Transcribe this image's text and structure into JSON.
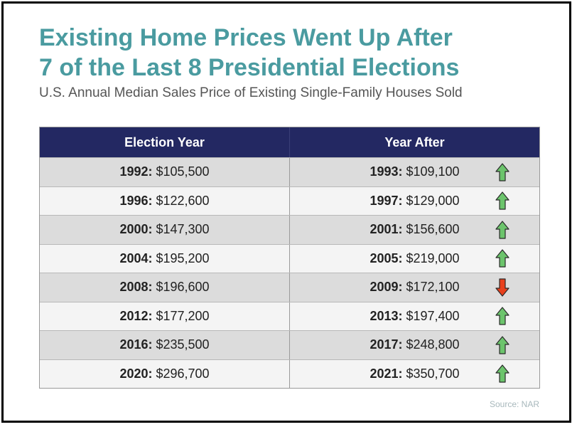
{
  "title": {
    "line1": "Existing Home Prices Went Up After",
    "line2": "7 of the Last 8 Presidential Elections"
  },
  "subtitle": "U.S. Annual Median Sales Price of Existing Single-Family Houses Sold",
  "source": "Source: NAR",
  "colors": {
    "title": "#4a9ba0",
    "header_bg": "#232862",
    "up_arrow": "#6cc46c",
    "down_arrow": "#e8401c"
  },
  "chart_data": {
    "type": "table",
    "title": "Existing Home Prices Went Up After 7 of the Last 8 Presidential Elections",
    "subtitle": "U.S. Annual Median Sales Price of Existing Single-Family Houses Sold",
    "columns": [
      "Election Year",
      "Year After"
    ],
    "rows": [
      {
        "election_year": "1992:",
        "election_price": "$105,500",
        "after_year": "1993:",
        "after_price": "$109,100",
        "direction": "up"
      },
      {
        "election_year": "1996:",
        "election_price": "$122,600",
        "after_year": "1997:",
        "after_price": "$129,000",
        "direction": "up"
      },
      {
        "election_year": "2000:",
        "election_price": "$147,300",
        "after_year": "2001:",
        "after_price": "$156,600",
        "direction": "up"
      },
      {
        "election_year": "2004:",
        "election_price": "$195,200",
        "after_year": "2005:",
        "after_price": "$219,000",
        "direction": "up"
      },
      {
        "election_year": "2008:",
        "election_price": "$196,600",
        "after_year": "2009:",
        "after_price": "$172,100",
        "direction": "down"
      },
      {
        "election_year": "2012:",
        "election_price": "$177,200",
        "after_year": "2013:",
        "after_price": "$197,400",
        "direction": "up"
      },
      {
        "election_year": "2016:",
        "election_price": "$235,500",
        "after_year": "2017:",
        "after_price": "$248,800",
        "direction": "up"
      },
      {
        "election_year": "2020:",
        "election_price": "$296,700",
        "after_year": "2021:",
        "after_price": "$350,700",
        "direction": "up"
      }
    ]
  }
}
